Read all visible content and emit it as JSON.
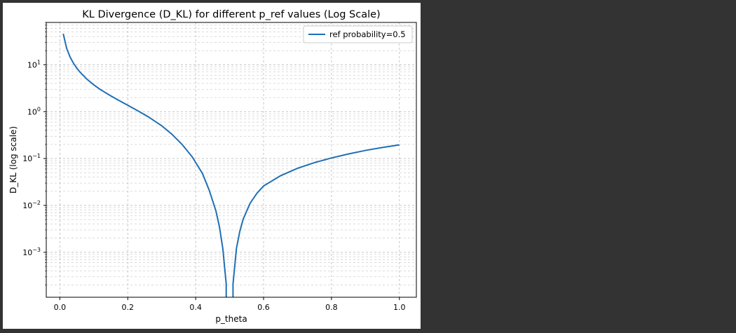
{
  "colors": {
    "page_background": "#333333",
    "figure_background": "#ffffff",
    "series_color": "#1f6fb4",
    "grid_color": "#b0b0b0"
  },
  "chart_data": {
    "type": "line",
    "title": "KL Divergence (D_KL) for different p_ref values (Log Scale)",
    "xlabel": "p_theta",
    "ylabel": "D_KL (log scale)",
    "xlim": [
      -0.04,
      1.05
    ],
    "ylim": [
      0.00011,
      80
    ],
    "yscale": "log",
    "grid": "major and minor, dashed",
    "legend_placement": "top-right",
    "x_ticks": [
      0.0,
      0.2,
      0.4,
      0.6,
      0.8,
      1.0
    ],
    "x_tick_labels": [
      "0.0",
      "0.2",
      "0.4",
      "0.6",
      "0.8",
      "1.0"
    ],
    "y_ticks": [
      {
        "value": 10,
        "base": "10",
        "exp": "1"
      },
      {
        "value": 1,
        "base": "10",
        "exp": "0"
      },
      {
        "value": 0.1,
        "base": "10",
        "exp": "−1"
      },
      {
        "value": 0.01,
        "base": "10",
        "exp": "−2"
      },
      {
        "value": 0.001,
        "base": "10",
        "exp": "−3"
      }
    ],
    "series": [
      {
        "name": "ref probability=0.5",
        "x": [
          0.01,
          0.02,
          0.03,
          0.04,
          0.05,
          0.06,
          0.08,
          0.1,
          0.12,
          0.15,
          0.18,
          0.2,
          0.23,
          0.26,
          0.3,
          0.33,
          0.36,
          0.39,
          0.42,
          0.44,
          0.46,
          0.47,
          0.48,
          0.49,
          0.51,
          0.52,
          0.53,
          0.54,
          0.56,
          0.58,
          0.6,
          0.65,
          0.7,
          0.75,
          0.8,
          0.85,
          0.9,
          0.95,
          1.0
        ],
        "y": [
          45.9,
          22.5,
          14.7,
          10.8,
          8.45,
          6.88,
          4.91,
          3.73,
          2.94,
          2.17,
          1.64,
          1.37,
          1.04,
          0.78,
          0.5,
          0.33,
          0.2,
          0.108,
          0.048,
          0.021,
          0.0075,
          0.0035,
          0.0012,
          0.00021,
          0.00021,
          0.0012,
          0.0028,
          0.0051,
          0.011,
          0.018,
          0.026,
          0.043,
          0.062,
          0.082,
          0.103,
          0.125,
          0.149,
          0.172,
          0.196
        ]
      }
    ]
  }
}
